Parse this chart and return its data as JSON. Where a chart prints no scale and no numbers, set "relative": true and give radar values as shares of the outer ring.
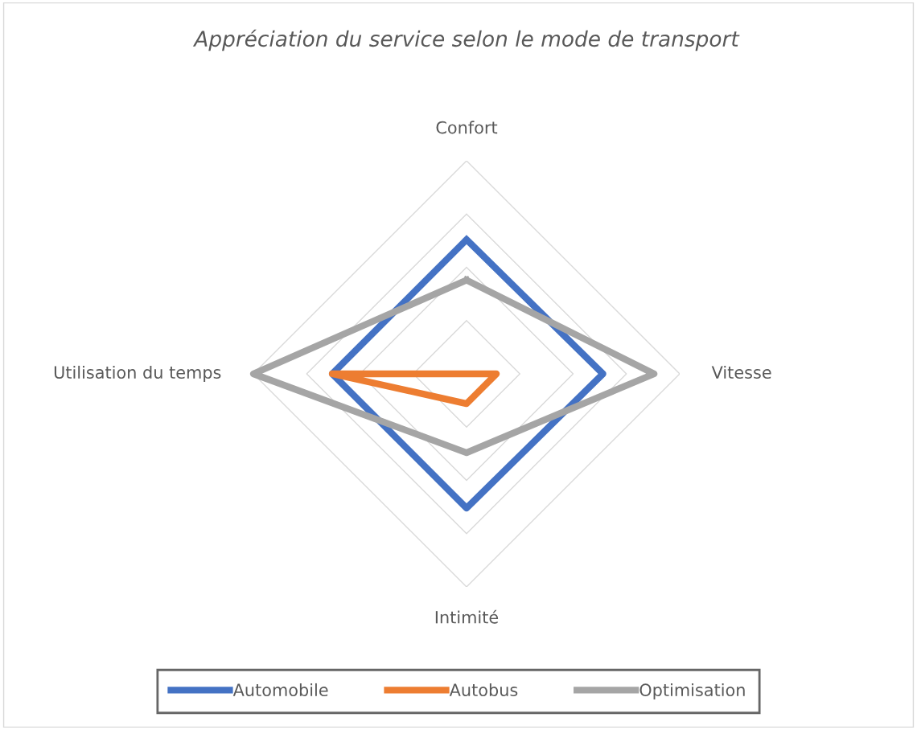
{
  "chart_data": {
    "type": "radar",
    "title": "Appréciation du service selon le mode de transport",
    "categories": [
      "Confort",
      "Vitesse",
      "Intimité",
      "Utilisation du temps"
    ],
    "relative": true,
    "grid": true,
    "legend": "bottom",
    "series": [
      {
        "name": "Automobile",
        "color": "#4472c4",
        "values": [
          0.63,
          0.64,
          0.63,
          0.63
        ]
      },
      {
        "name": "Autobus",
        "color": "#ed7d31",
        "values": [
          0,
          0.14,
          0.14,
          0.63
        ]
      },
      {
        "name": "Optimisation",
        "color": "#a5a5a5",
        "values": [
          0.44,
          0.88,
          0.37,
          1.0
        ]
      }
    ]
  }
}
